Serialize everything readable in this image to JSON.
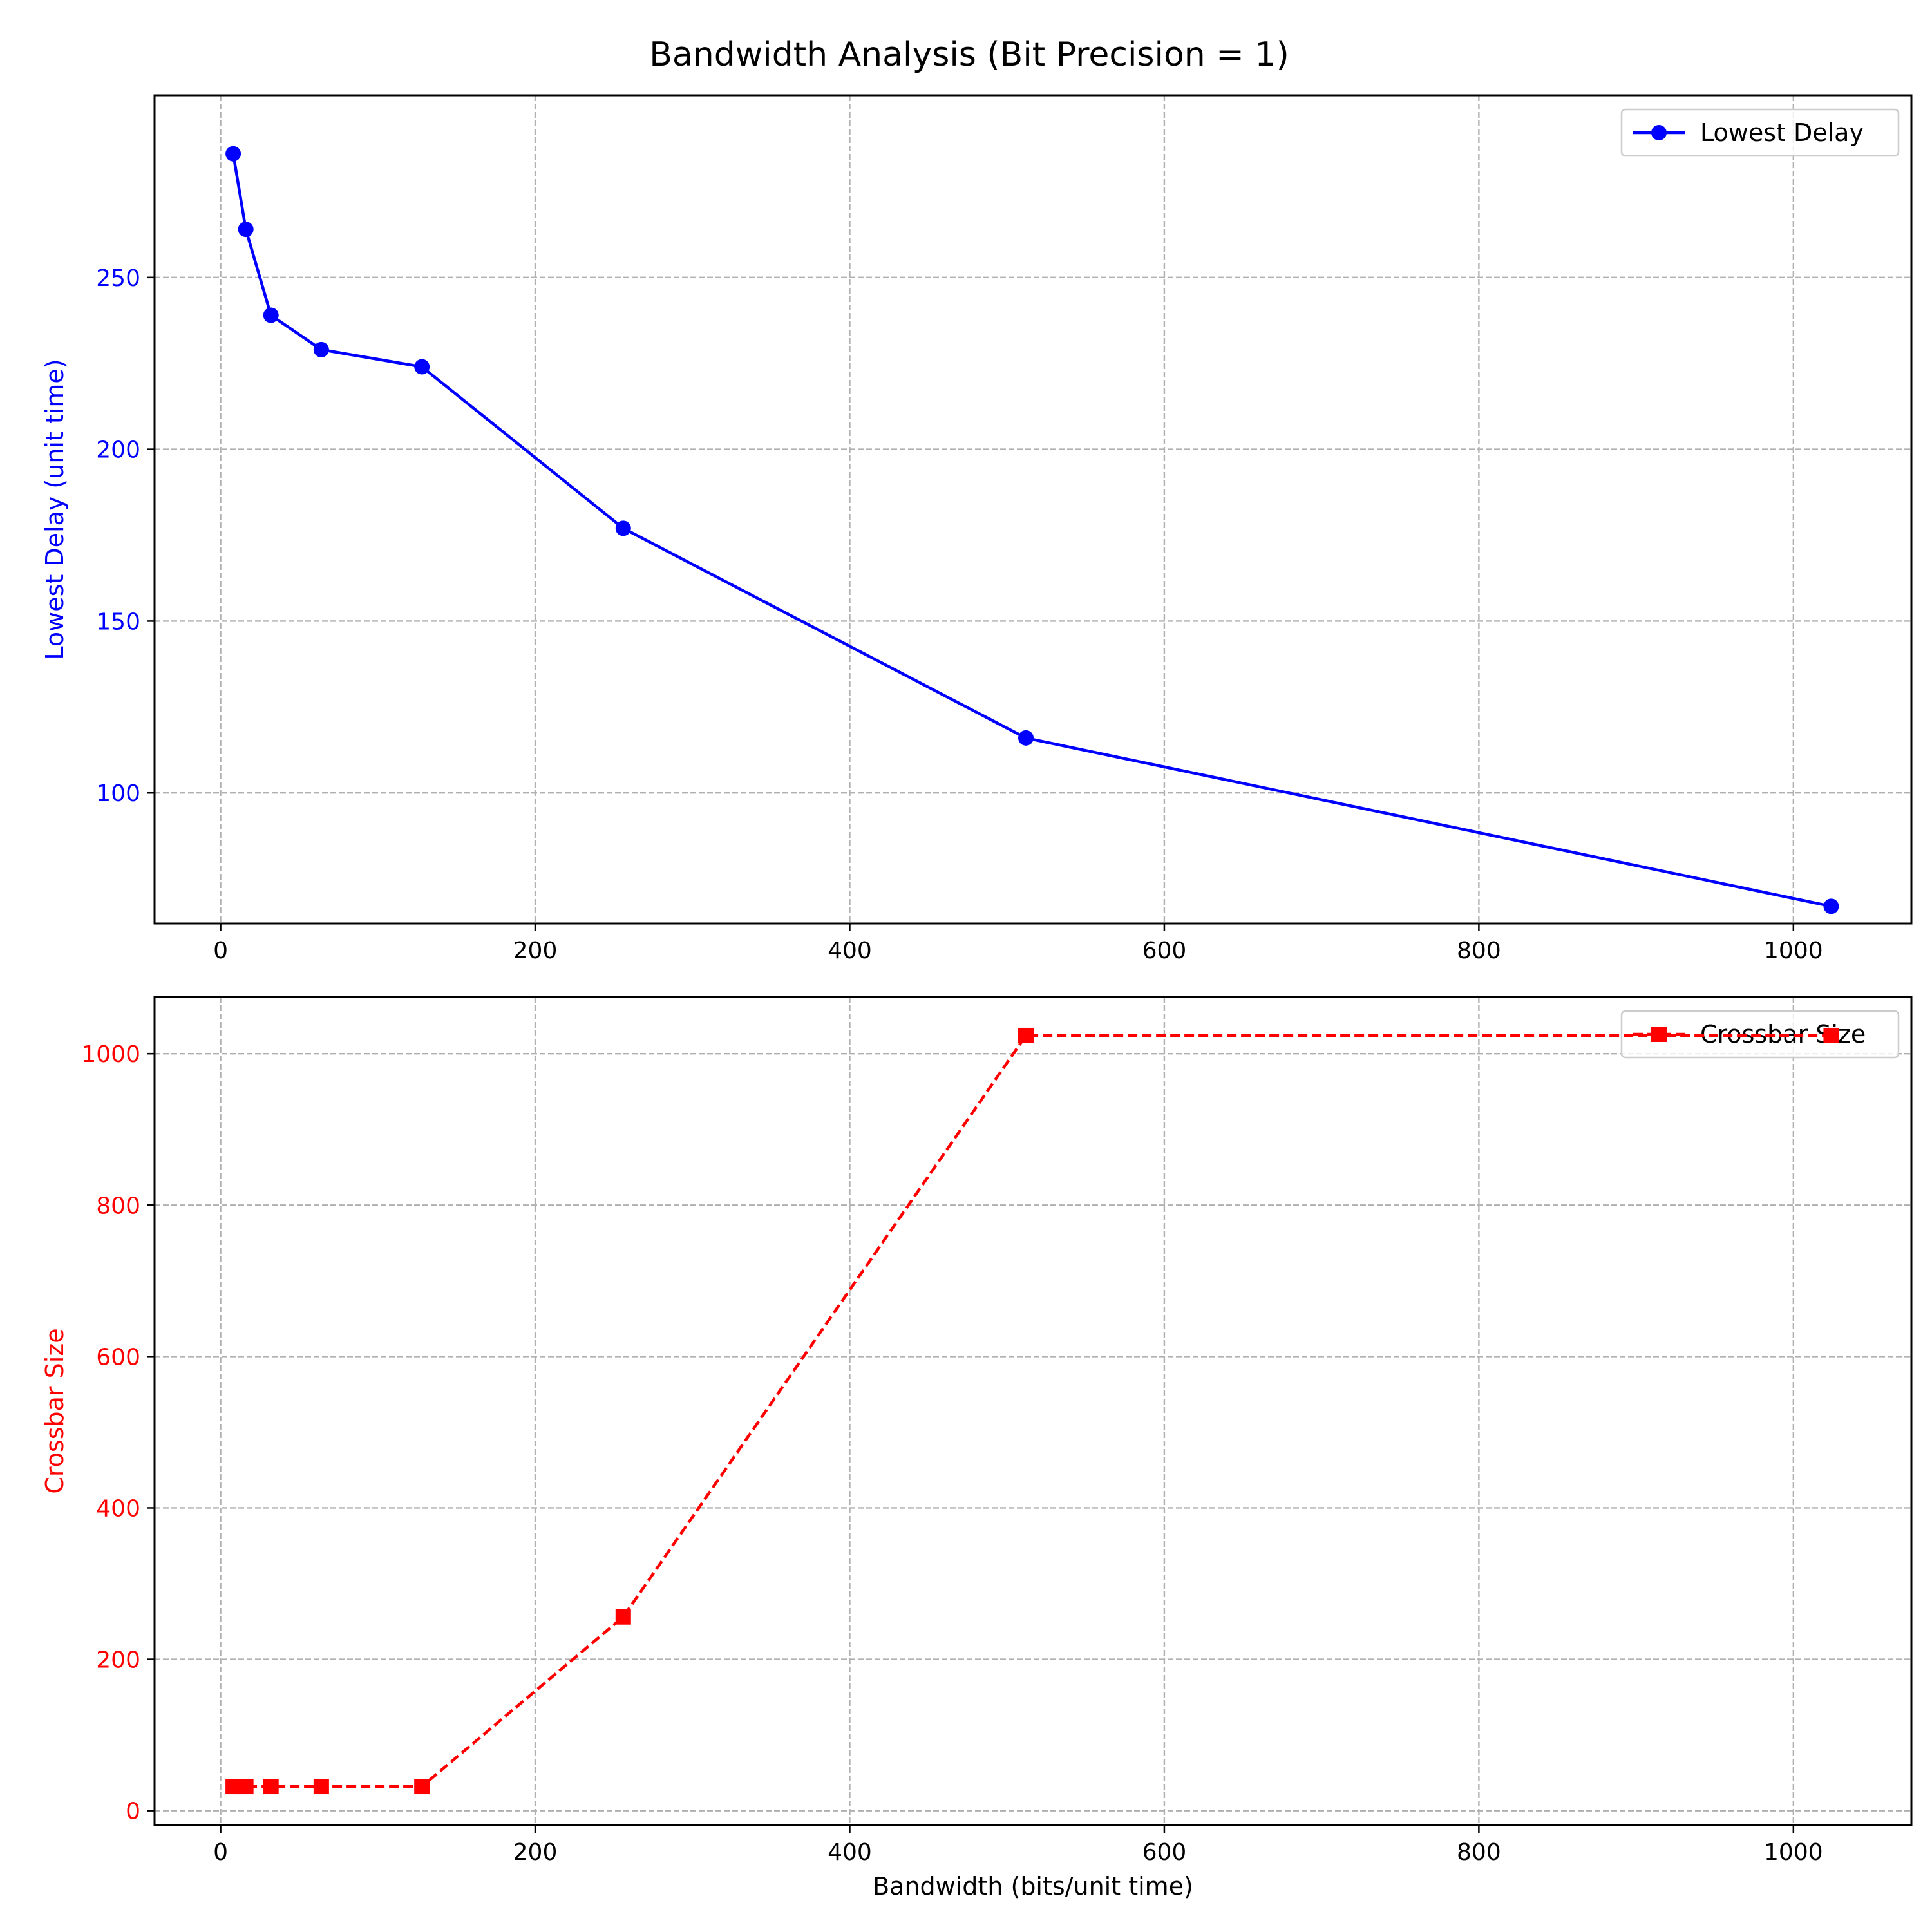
{
  "figure": {
    "title": "Bandwidth Analysis (Bit Precision = 1)"
  },
  "chart_data": [
    {
      "type": "line",
      "title": "",
      "xlabel": "",
      "ylabel": "Lowest Delay (unit time)",
      "xlim": [
        -42,
        1075
      ],
      "ylim": [
        62,
        303
      ],
      "xticks": [
        0,
        200,
        400,
        600,
        800,
        1000
      ],
      "yticks": [
        100,
        150,
        200,
        250
      ],
      "grid": true,
      "legend": {
        "placement": "upper-right",
        "frame": true
      },
      "ytick_color": "#0000ff",
      "ylabel_color": "#0000ff",
      "series": [
        {
          "name": "Lowest Delay",
          "color": "#0000ff",
          "line_style": "solid",
          "marker": "circle",
          "x": [
            8,
            16,
            32,
            64,
            128,
            256,
            512,
            1024
          ],
          "y": [
            286,
            264,
            239,
            229,
            224,
            177,
            116,
            67
          ]
        }
      ]
    },
    {
      "type": "line",
      "title": "",
      "xlabel": "Bandwidth (bits/unit time)",
      "ylabel": "Crossbar Size",
      "xlim": [
        -42,
        1075
      ],
      "ylim": [
        -19,
        1075
      ],
      "xticks": [
        0,
        200,
        400,
        600,
        800,
        1000
      ],
      "yticks": [
        0,
        200,
        400,
        600,
        800,
        1000
      ],
      "grid": true,
      "legend": {
        "placement": "upper-right",
        "frame": true
      },
      "ytick_color": "#ff0000",
      "ylabel_color": "#ff0000",
      "series": [
        {
          "name": "Crossbar Size",
          "color": "#ff0000",
          "line_style": "dashed",
          "marker": "square",
          "x": [
            8,
            16,
            32,
            64,
            128,
            256,
            512,
            1024
          ],
          "y": [
            32,
            32,
            32,
            32,
            32,
            256,
            1024,
            1024
          ]
        }
      ]
    }
  ]
}
